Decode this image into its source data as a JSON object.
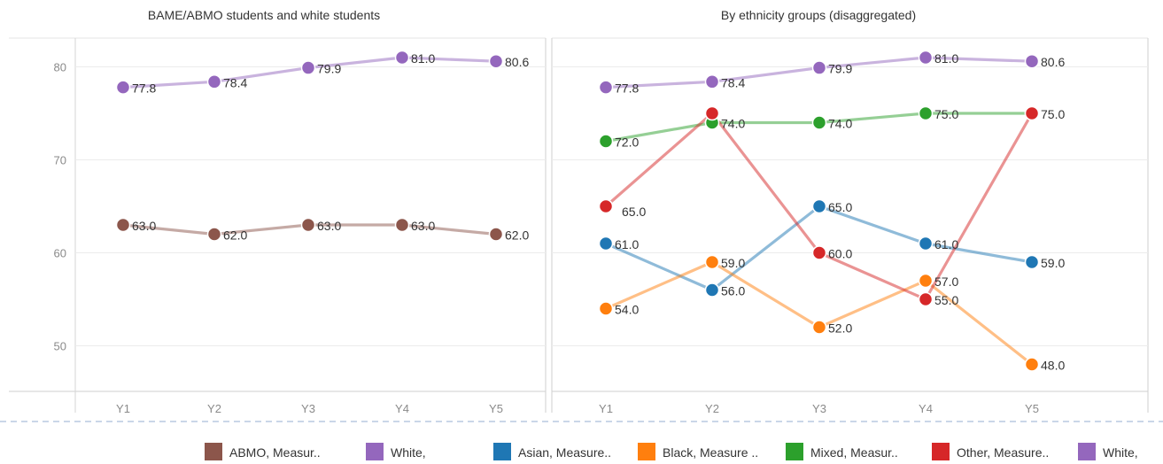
{
  "chart_data": [
    {
      "type": "line",
      "title": "BAME/ABMO students and white students",
      "categories": [
        "Y1",
        "Y2",
        "Y3",
        "Y4",
        "Y5"
      ],
      "ylim": [
        43.7,
        84.8
      ],
      "yticks": [
        50,
        60,
        70,
        80
      ],
      "grid": true,
      "series": [
        {
          "name": "ABMO, Measur..",
          "color": "#8c564b",
          "values": [
            63.0,
            62.0,
            63.0,
            63.0,
            62.0
          ],
          "labels": [
            "63.0",
            "62.0",
            "63.0",
            "63.0",
            "62.0"
          ]
        },
        {
          "name": "White,",
          "color": "#9467bd",
          "values": [
            77.8,
            78.4,
            79.9,
            81.0,
            80.6
          ],
          "labels": [
            "77.8",
            "78.4",
            "79.9",
            "81.0",
            "80.6"
          ]
        }
      ]
    },
    {
      "type": "line",
      "title": "By ethnicity groups (disaggregated)",
      "categories": [
        "Y1",
        "Y2",
        "Y3",
        "Y4",
        "Y5"
      ],
      "ylim": [
        43.7,
        84.8
      ],
      "yticks": [
        50,
        60,
        70,
        80
      ],
      "grid": true,
      "series": [
        {
          "name": "Asian, Measure..",
          "color": "#1f77b4",
          "values": [
            61.0,
            56.0,
            65.0,
            61.0,
            59.0
          ],
          "labels": [
            "61.0",
            "56.0",
            "65.0",
            "61.0",
            "59.0"
          ]
        },
        {
          "name": "Black, Measure ..",
          "color": "#ff7f0e",
          "values": [
            54.0,
            59.0,
            52.0,
            57.0,
            48.0
          ],
          "labels": [
            "54.0",
            "59.0",
            "52.0",
            "57.0",
            "48.0"
          ]
        },
        {
          "name": "Mixed, Measur..",
          "color": "#2ca02c",
          "values": [
            72.0,
            74.0,
            74.0,
            75.0,
            75.0
          ],
          "labels": [
            "72.0",
            "74.0",
            "74.0",
            "75.0",
            "75.0"
          ]
        },
        {
          "name": "Other, Measure..",
          "color": "#d62728",
          "values": [
            65.0,
            75.0,
            60.0,
            55.0,
            75.0
          ],
          "labels": [
            "65.0",
            "",
            "60.0",
            "55.0",
            ""
          ]
        },
        {
          "name": "White,",
          "color": "#9467bd",
          "values": [
            77.8,
            78.4,
            79.9,
            81.0,
            80.6
          ],
          "labels": [
            "77.8",
            "78.4",
            "79.9",
            "81.0",
            "80.6"
          ]
        }
      ]
    }
  ]
}
